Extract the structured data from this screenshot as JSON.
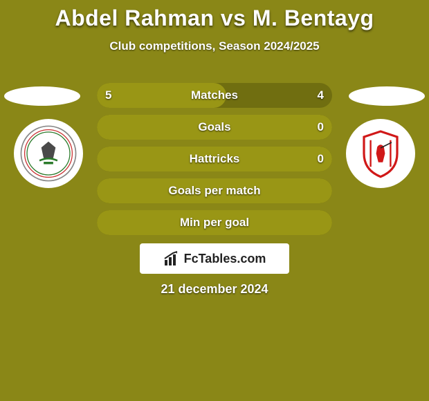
{
  "background_color": "#8a8717",
  "title": "Abdel Rahman vs M. Bentayg",
  "title_color": "#ffffff",
  "title_fontsize": 32,
  "subtitle": "Club competitions, Season 2024/2025",
  "subtitle_color": "#ffffff",
  "subtitle_fontsize": 17,
  "stats": {
    "bar_bg_color": "#706e10",
    "bar_fill_color": "#999615",
    "text_color": "#ffffff",
    "text_fontsize": 17,
    "rows": [
      {
        "label": "Matches",
        "left_val": "5",
        "right_val": "4",
        "fill_pct": 55
      },
      {
        "label": "Goals",
        "left_val": "",
        "right_val": "0",
        "fill_pct": 100
      },
      {
        "label": "Hattricks",
        "left_val": "",
        "right_val": "0",
        "fill_pct": 100
      },
      {
        "label": "Goals per match",
        "left_val": "",
        "right_val": "",
        "fill_pct": 100
      },
      {
        "label": "Min per goal",
        "left_val": "",
        "right_val": "",
        "fill_pct": 100
      }
    ]
  },
  "brand": {
    "text": "FcTables.com",
    "bg_color": "#ffffff",
    "text_color": "#222222",
    "fontsize": 18
  },
  "date": "21 december 2024",
  "ovals": {
    "color": "#ffffff"
  },
  "logos": {
    "left_alt": "club-logo-left",
    "right_alt": "club-logo-right"
  }
}
